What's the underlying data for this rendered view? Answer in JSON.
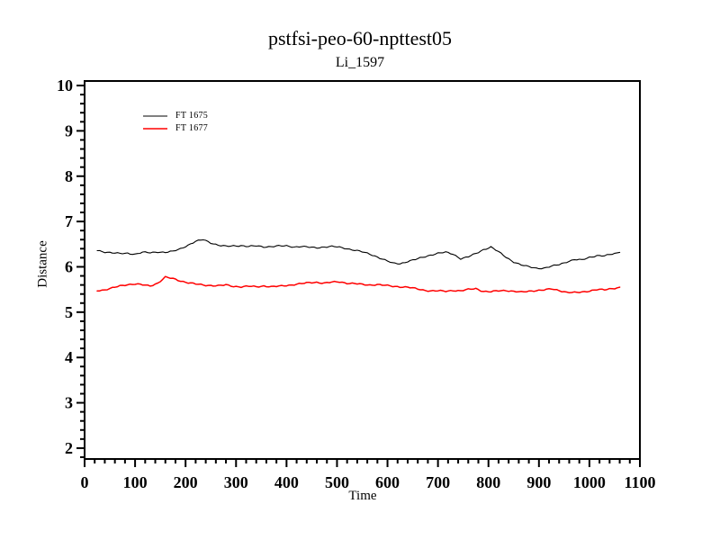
{
  "window": {
    "background_color": "#ffffff",
    "foreground_color": "#000000"
  },
  "chart_data": {
    "type": "line",
    "title": "pstfsi-peo-60-npttest05",
    "subtitle": "Li_1597",
    "xlabel": "Time",
    "ylabel": "Distance",
    "xlim": [
      0,
      1100
    ],
    "ylim": [
      1.76,
      10.1
    ],
    "x_major_ticks": [
      0,
      100,
      200,
      300,
      400,
      500,
      600,
      700,
      800,
      900,
      1000,
      1100
    ],
    "x_minor_step": 20,
    "y_major_ticks": [
      2,
      3,
      4,
      5,
      6,
      7,
      8,
      9,
      10
    ],
    "y_minor_step": 0.2,
    "grid": false,
    "frame": "box",
    "legend_position": "upper-left-inside",
    "series": [
      {
        "name": "FT 1675",
        "color": "#000000",
        "width": 1.1,
        "points": [
          [
            25,
            6.36
          ],
          [
            40,
            6.33
          ],
          [
            55,
            6.31
          ],
          [
            70,
            6.29
          ],
          [
            85,
            6.3
          ],
          [
            100,
            6.28
          ],
          [
            115,
            6.32
          ],
          [
            130,
            6.31
          ],
          [
            145,
            6.33
          ],
          [
            160,
            6.32
          ],
          [
            175,
            6.34
          ],
          [
            190,
            6.4
          ],
          [
            205,
            6.48
          ],
          [
            220,
            6.56
          ],
          [
            235,
            6.6
          ],
          [
            250,
            6.53
          ],
          [
            265,
            6.48
          ],
          [
            280,
            6.45
          ],
          [
            295,
            6.46
          ],
          [
            310,
            6.47
          ],
          [
            325,
            6.45
          ],
          [
            340,
            6.46
          ],
          [
            355,
            6.44
          ],
          [
            370,
            6.45
          ],
          [
            385,
            6.46
          ],
          [
            400,
            6.46
          ],
          [
            415,
            6.44
          ],
          [
            430,
            6.45
          ],
          [
            445,
            6.43
          ],
          [
            460,
            6.42
          ],
          [
            475,
            6.44
          ],
          [
            490,
            6.45
          ],
          [
            505,
            6.43
          ],
          [
            520,
            6.4
          ],
          [
            535,
            6.37
          ],
          [
            550,
            6.33
          ],
          [
            565,
            6.28
          ],
          [
            580,
            6.22
          ],
          [
            595,
            6.15
          ],
          [
            610,
            6.08
          ],
          [
            625,
            6.07
          ],
          [
            640,
            6.12
          ],
          [
            655,
            6.16
          ],
          [
            670,
            6.21
          ],
          [
            685,
            6.26
          ],
          [
            700,
            6.3
          ],
          [
            715,
            6.32
          ],
          [
            730,
            6.28
          ],
          [
            745,
            6.18
          ],
          [
            760,
            6.22
          ],
          [
            775,
            6.29
          ],
          [
            790,
            6.38
          ],
          [
            805,
            6.44
          ],
          [
            820,
            6.33
          ],
          [
            835,
            6.21
          ],
          [
            850,
            6.11
          ],
          [
            865,
            6.04
          ],
          [
            880,
            6.0
          ],
          [
            895,
            5.97
          ],
          [
            910,
            5.97
          ],
          [
            925,
            6.01
          ],
          [
            940,
            6.05
          ],
          [
            955,
            6.11
          ],
          [
            970,
            6.16
          ],
          [
            985,
            6.15
          ],
          [
            1000,
            6.21
          ],
          [
            1015,
            6.25
          ],
          [
            1030,
            6.24
          ],
          [
            1045,
            6.28
          ],
          [
            1060,
            6.32
          ]
        ]
      },
      {
        "name": "FT 1677",
        "color": "#ff0000",
        "width": 1.5,
        "points": [
          [
            25,
            5.48
          ],
          [
            40,
            5.49
          ],
          [
            55,
            5.53
          ],
          [
            70,
            5.58
          ],
          [
            85,
            5.61
          ],
          [
            100,
            5.62
          ],
          [
            115,
            5.6
          ],
          [
            130,
            5.58
          ],
          [
            145,
            5.64
          ],
          [
            160,
            5.77
          ],
          [
            175,
            5.74
          ],
          [
            190,
            5.69
          ],
          [
            205,
            5.65
          ],
          [
            220,
            5.62
          ],
          [
            235,
            5.6
          ],
          [
            250,
            5.59
          ],
          [
            265,
            5.58
          ],
          [
            280,
            5.6
          ],
          [
            295,
            5.57
          ],
          [
            310,
            5.56
          ],
          [
            325,
            5.57
          ],
          [
            340,
            5.56
          ],
          [
            355,
            5.58
          ],
          [
            370,
            5.56
          ],
          [
            385,
            5.57
          ],
          [
            400,
            5.59
          ],
          [
            415,
            5.61
          ],
          [
            430,
            5.63
          ],
          [
            445,
            5.65
          ],
          [
            460,
            5.66
          ],
          [
            475,
            5.64
          ],
          [
            490,
            5.66
          ],
          [
            505,
            5.67
          ],
          [
            520,
            5.64
          ],
          [
            535,
            5.63
          ],
          [
            550,
            5.61
          ],
          [
            565,
            5.6
          ],
          [
            580,
            5.61
          ],
          [
            595,
            5.59
          ],
          [
            610,
            5.57
          ],
          [
            625,
            5.56
          ],
          [
            640,
            5.55
          ],
          [
            655,
            5.52
          ],
          [
            670,
            5.49
          ],
          [
            685,
            5.47
          ],
          [
            700,
            5.47
          ],
          [
            715,
            5.46
          ],
          [
            730,
            5.48
          ],
          [
            745,
            5.47
          ],
          [
            760,
            5.5
          ],
          [
            775,
            5.52
          ],
          [
            790,
            5.46
          ],
          [
            805,
            5.45
          ],
          [
            820,
            5.47
          ],
          [
            835,
            5.48
          ],
          [
            850,
            5.46
          ],
          [
            865,
            5.44
          ],
          [
            880,
            5.46
          ],
          [
            895,
            5.48
          ],
          [
            910,
            5.49
          ],
          [
            925,
            5.51
          ],
          [
            940,
            5.48
          ],
          [
            955,
            5.44
          ],
          [
            970,
            5.43
          ],
          [
            985,
            5.44
          ],
          [
            1000,
            5.47
          ],
          [
            1015,
            5.5
          ],
          [
            1030,
            5.49
          ],
          [
            1045,
            5.52
          ],
          [
            1060,
            5.55
          ]
        ]
      }
    ]
  }
}
